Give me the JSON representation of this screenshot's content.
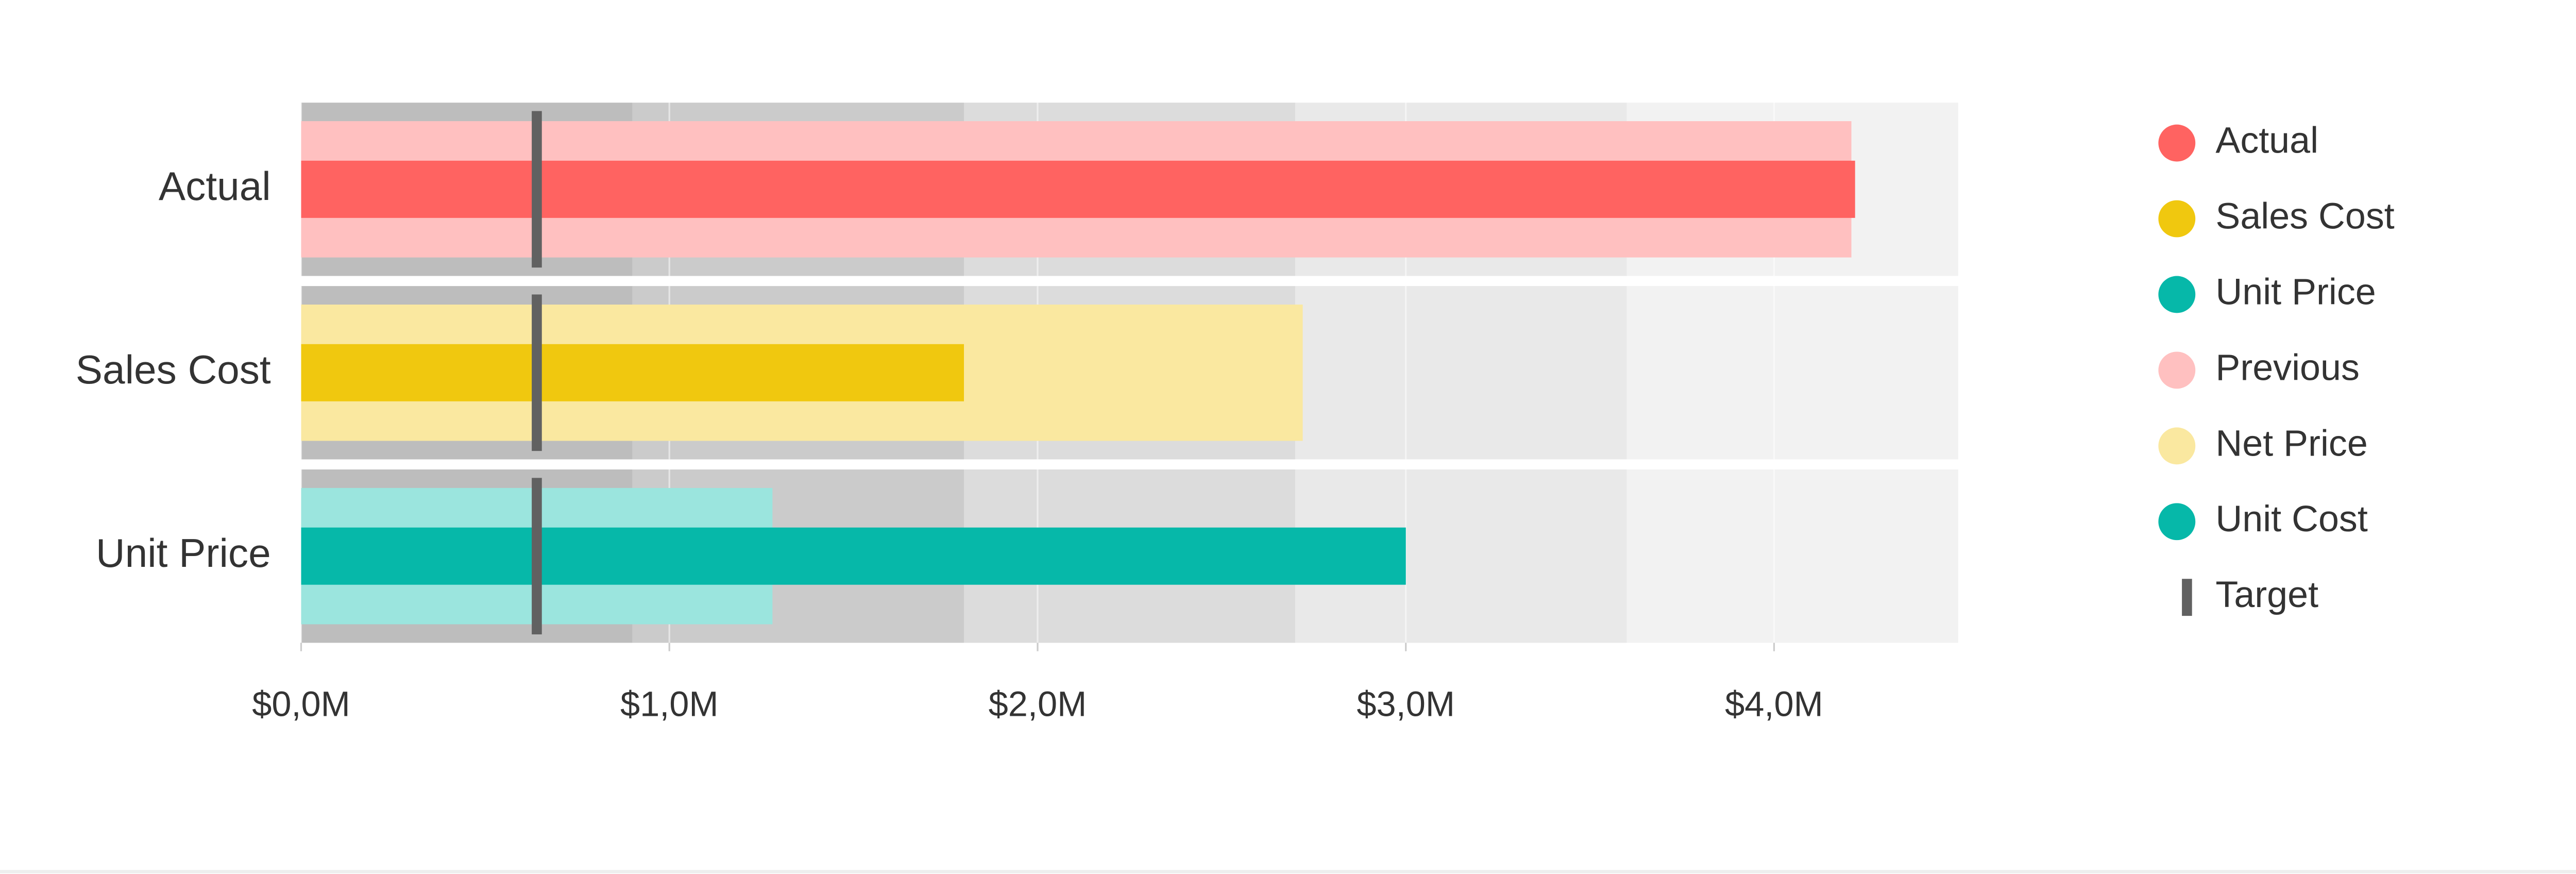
{
  "chart_data": {
    "type": "bullet",
    "categories": [
      "Actual",
      "Sales Cost",
      "Unit Price"
    ],
    "xlim": [
      0,
      4500000
    ],
    "xticks": [
      {
        "value": 0,
        "label": "$0,0M"
      },
      {
        "value": 1000000,
        "label": "$1,0M"
      },
      {
        "value": 2000000,
        "label": "$2,0M"
      },
      {
        "value": 3000000,
        "label": "$3,0M"
      },
      {
        "value": 4000000,
        "label": "$4,0M"
      }
    ],
    "grid": true,
    "ranges": [
      900000,
      1800000,
      2700000,
      3600000,
      4500000
    ],
    "range_colors": [
      "#bdbdbd",
      "#cbcbcb",
      "#dcdcdc",
      "#e9e9e9",
      "#f2f2f2"
    ],
    "legend_position": "right",
    "series": [
      {
        "name": "Actual",
        "kind": "primary",
        "color": "#ff6361",
        "values": [
          4220000,
          null,
          null
        ]
      },
      {
        "name": "Sales Cost",
        "kind": "primary",
        "color": "#f0c80f",
        "values": [
          null,
          1800000,
          null
        ]
      },
      {
        "name": "Unit Price",
        "kind": "primary",
        "color": "#06b8a9",
        "values": [
          null,
          null,
          3000000
        ]
      },
      {
        "name": "Previous",
        "kind": "secondary",
        "color": "#ffc0c0",
        "values": [
          4210000,
          null,
          null
        ]
      },
      {
        "name": "Net Price",
        "kind": "secondary",
        "color": "#fae8a0",
        "values": [
          null,
          2720000,
          null
        ]
      },
      {
        "name": "Unit Cost",
        "kind": "secondary",
        "color": "#06b8a9",
        "bar_color": "#9be5de",
        "values": [
          null,
          null,
          1280000
        ]
      },
      {
        "name": "Target",
        "kind": "target",
        "color": "#616161",
        "values": [
          640000,
          640000,
          640000
        ]
      }
    ]
  }
}
